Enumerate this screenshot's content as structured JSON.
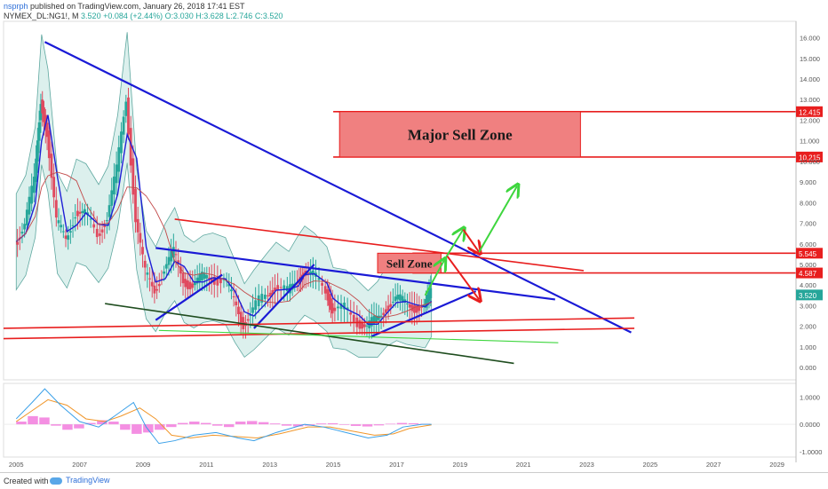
{
  "header": {
    "author": "nsprph",
    "published_text": "published on TradingView.com, January 26, 2018 17:41 EST",
    "symbol": "NYMEX_DL:NG1!, M",
    "last": "3.520",
    "change": "+0.084 (+2.44%)",
    "open": "O:3.030",
    "high": "H:3.628",
    "low": "L:2.746",
    "close": "C:3.520"
  },
  "footer": {
    "created_with": "Created with",
    "brand": "TradingView"
  },
  "colors": {
    "trend_blue": "#1a1ad6",
    "zone_red": "#e81e1e",
    "zone_fill": "#f08080",
    "arrow_green": "#3ed63e",
    "support_dark": "#1f4d1f",
    "bollinger_fill": "#bfe3df",
    "bollinger_line": "#5fa8a0",
    "candle_up": "#26a69a",
    "candle_down": "#e04a5f",
    "ma_blue": "#1f1fd6",
    "ma_red": "#c24a4a",
    "macd_blue": "#3aa0e8",
    "macd_orange": "#f0962a",
    "hist_pink": "#f06ad8",
    "axis_text": "#555555",
    "last_price_bg": "#26a69a",
    "red_label_bg": "#e81e1e"
  },
  "chart_data": {
    "type": "candlestick",
    "symbol": "NYMEX_DL:NG1!",
    "timeframe": "M",
    "x_axis": {
      "range": [
        2004.6,
        2029.6
      ],
      "ticks": [
        "2005",
        "2007",
        "2009",
        "2011",
        "2013",
        "2015",
        "2017",
        "2019",
        "2021",
        "2023",
        "2025",
        "2027",
        "2029"
      ]
    },
    "y_axis": {
      "range": [
        -0.6,
        16.8
      ],
      "ticks": [
        "16.000",
        "15.000",
        "14.000",
        "13.000",
        "12.000",
        "11.000",
        "10.000",
        "9.000",
        "8.000",
        "7.000",
        "6.000",
        "5.000",
        "4.000",
        "3.000",
        "2.000",
        "1.000",
        "0.000"
      ]
    },
    "price_closes": [
      {
        "x": 2005.0,
        "y": 6.1
      },
      {
        "x": 2005.3,
        "y": 6.9
      },
      {
        "x": 2005.6,
        "y": 9.0
      },
      {
        "x": 2005.8,
        "y": 13.0
      },
      {
        "x": 2006.0,
        "y": 11.5
      },
      {
        "x": 2006.3,
        "y": 7.0
      },
      {
        "x": 2006.6,
        "y": 6.2
      },
      {
        "x": 2006.9,
        "y": 7.6
      },
      {
        "x": 2007.2,
        "y": 7.4
      },
      {
        "x": 2007.6,
        "y": 6.5
      },
      {
        "x": 2007.9,
        "y": 7.3
      },
      {
        "x": 2008.2,
        "y": 9.5
      },
      {
        "x": 2008.5,
        "y": 13.1
      },
      {
        "x": 2008.8,
        "y": 7.2
      },
      {
        "x": 2009.1,
        "y": 4.5
      },
      {
        "x": 2009.4,
        "y": 3.8
      },
      {
        "x": 2009.7,
        "y": 4.8
      },
      {
        "x": 2010.0,
        "y": 5.5
      },
      {
        "x": 2010.3,
        "y": 4.3
      },
      {
        "x": 2010.6,
        "y": 4.0
      },
      {
        "x": 2010.9,
        "y": 4.3
      },
      {
        "x": 2011.2,
        "y": 4.4
      },
      {
        "x": 2011.6,
        "y": 4.2
      },
      {
        "x": 2011.9,
        "y": 3.2
      },
      {
        "x": 2012.2,
        "y": 2.2
      },
      {
        "x": 2012.5,
        "y": 2.8
      },
      {
        "x": 2012.9,
        "y": 3.5
      },
      {
        "x": 2013.2,
        "y": 4.0
      },
      {
        "x": 2013.6,
        "y": 3.6
      },
      {
        "x": 2013.9,
        "y": 4.3
      },
      {
        "x": 2014.1,
        "y": 4.7
      },
      {
        "x": 2014.4,
        "y": 4.4
      },
      {
        "x": 2014.8,
        "y": 3.8
      },
      {
        "x": 2015.0,
        "y": 2.9
      },
      {
        "x": 2015.4,
        "y": 2.8
      },
      {
        "x": 2015.8,
        "y": 2.3
      },
      {
        "x": 2016.1,
        "y": 1.9
      },
      {
        "x": 2016.4,
        "y": 2.3
      },
      {
        "x": 2016.7,
        "y": 3.0
      },
      {
        "x": 2017.0,
        "y": 3.3
      },
      {
        "x": 2017.3,
        "y": 3.1
      },
      {
        "x": 2017.6,
        "y": 3.0
      },
      {
        "x": 2017.9,
        "y": 2.9
      },
      {
        "x": 2018.1,
        "y": 3.52
      }
    ],
    "horizontal_levels": [
      12.415,
      10.215,
      5.545,
      4.587
    ],
    "price_labels": {
      "level_1": "12.415",
      "level_2": "10.215",
      "level_3": "5.545",
      "level_4": "4.587",
      "last": "3.520"
    },
    "trendlines": [
      {
        "color": "blue",
        "from": [
          2005.9,
          15.8
        ],
        "to": [
          2024.4,
          1.7
        ]
      },
      {
        "color": "blue",
        "from": [
          2009.4,
          5.8
        ],
        "to": [
          2022.0,
          3.3
        ]
      },
      {
        "color": "blue",
        "from": [
          2009.4,
          2.3
        ],
        "to": [
          2011.5,
          4.5
        ]
      },
      {
        "color": "blue",
        "from": [
          2012.5,
          1.9
        ],
        "to": [
          2014.4,
          5.0
        ]
      },
      {
        "color": "blue",
        "from": [
          2016.2,
          1.5
        ],
        "to": [
          2019.5,
          3.7
        ]
      },
      {
        "color": "red",
        "from": [
          2010.0,
          7.2
        ],
        "to": [
          2022.9,
          4.7
        ]
      },
      {
        "color": "red",
        "from": [
          2004.6,
          1.9
        ],
        "to": [
          2024.5,
          2.4
        ]
      },
      {
        "color": "red",
        "from": [
          2004.6,
          1.4
        ],
        "to": [
          2024.5,
          1.9
        ]
      },
      {
        "color": "darkgreen",
        "from": [
          2007.8,
          3.1
        ],
        "to": [
          2020.7,
          0.2
        ]
      },
      {
        "color": "green",
        "from": [
          2009.5,
          1.8
        ],
        "to": [
          2022.1,
          1.2
        ]
      }
    ],
    "zones": [
      {
        "label": "Major Sell Zone",
        "x": [
          2015.2,
          2022.8
        ],
        "y": [
          10.215,
          12.415
        ]
      },
      {
        "label": "Sell Zone",
        "x": [
          2016.4,
          2018.4
        ],
        "y": [
          4.587,
          5.545
        ]
      }
    ],
    "projection_arrows": [
      {
        "color": "green",
        "path": [
          [
            2017.9,
            3.5
          ],
          [
            2018.5,
            5.2
          ]
        ]
      },
      {
        "color": "green",
        "path": [
          [
            2018.5,
            5.2
          ],
          [
            2019.1,
            6.7
          ]
        ]
      },
      {
        "color": "red",
        "path": [
          [
            2019.1,
            6.7
          ],
          [
            2019.6,
            5.6
          ]
        ]
      },
      {
        "color": "green",
        "path": [
          [
            2019.6,
            5.6
          ],
          [
            2020.8,
            8.8
          ]
        ]
      },
      {
        "color": "red",
        "path": [
          [
            2018.6,
            5.4
          ],
          [
            2019.6,
            3.3
          ]
        ]
      }
    ],
    "macd": {
      "y_range": [
        -1.2,
        1.5
      ],
      "ticks": [
        "1.0000",
        "0.0000",
        "-1.0000"
      ],
      "macd_line": [
        [
          2005.0,
          0.2
        ],
        [
          2005.5,
          0.8
        ],
        [
          2005.9,
          1.3
        ],
        [
          2006.4,
          0.7
        ],
        [
          2007.0,
          0.1
        ],
        [
          2007.6,
          -0.1
        ],
        [
          2008.1,
          0.3
        ],
        [
          2008.7,
          0.8
        ],
        [
          2009.1,
          -0.1
        ],
        [
          2009.5,
          -0.7
        ],
        [
          2010.0,
          -0.6
        ],
        [
          2010.6,
          -0.4
        ],
        [
          2011.3,
          -0.3
        ],
        [
          2012.0,
          -0.5
        ],
        [
          2012.5,
          -0.6
        ],
        [
          2013.2,
          -0.3
        ],
        [
          2014.1,
          0.0
        ],
        [
          2014.7,
          -0.1
        ],
        [
          2015.4,
          -0.3
        ],
        [
          2016.1,
          -0.5
        ],
        [
          2016.7,
          -0.4
        ],
        [
          2017.2,
          -0.1
        ],
        [
          2017.8,
          0.0
        ],
        [
          2018.1,
          0.0
        ]
      ],
      "signal_line": [
        [
          2005.0,
          0.1
        ],
        [
          2005.5,
          0.5
        ],
        [
          2006.0,
          0.9
        ],
        [
          2006.6,
          0.7
        ],
        [
          2007.2,
          0.2
        ],
        [
          2007.8,
          0.1
        ],
        [
          2008.3,
          0.3
        ],
        [
          2008.9,
          0.6
        ],
        [
          2009.4,
          0.2
        ],
        [
          2009.9,
          -0.4
        ],
        [
          2010.5,
          -0.5
        ],
        [
          2011.2,
          -0.4
        ],
        [
          2012.0,
          -0.45
        ],
        [
          2012.6,
          -0.5
        ],
        [
          2013.3,
          -0.35
        ],
        [
          2014.2,
          -0.1
        ],
        [
          2014.9,
          -0.1
        ],
        [
          2015.6,
          -0.25
        ],
        [
          2016.3,
          -0.4
        ],
        [
          2016.9,
          -0.35
        ],
        [
          2017.4,
          -0.15
        ],
        [
          2018.1,
          -0.02
        ]
      ],
      "histogram": [
        0.1,
        0.3,
        0.25,
        -0.05,
        -0.2,
        -0.15,
        0.05,
        0.15,
        0.1,
        -0.2,
        -0.35,
        -0.3,
        -0.2,
        -0.1,
        0.05,
        0.1,
        0.05,
        -0.05,
        -0.1,
        0.1,
        0.12,
        0.08,
        0.03,
        -0.05,
        -0.08,
        -0.05,
        0.03,
        0.04,
        -0.02,
        -0.06,
        -0.08,
        -0.04,
        0.02,
        0.05,
        0.04,
        0.02
      ]
    },
    "annotation_labels": {
      "major_sell_zone": "Major Sell Zone",
      "sell_zone": "Sell Zone"
    }
  }
}
